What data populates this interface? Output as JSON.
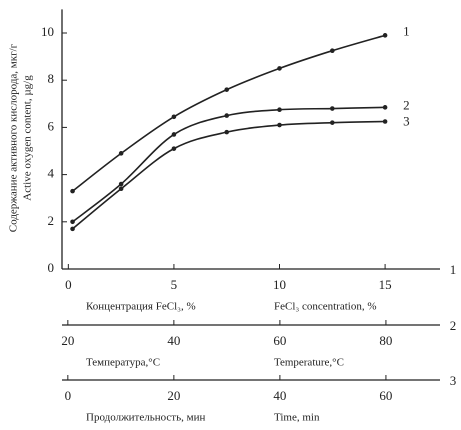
{
  "chart_data": {
    "type": "line",
    "y_labels": [
      "Содержание активного кислорода, мкг/г",
      "Active oxygen content, µg/g"
    ],
    "ylim": [
      0,
      11
    ],
    "yticks": [
      0,
      2,
      4,
      6,
      8,
      10
    ],
    "x": [
      0.2,
      2.5,
      5,
      7.5,
      10,
      12.5,
      15
    ],
    "series": [
      {
        "name": "1",
        "color": "#222222",
        "values": [
          3.3,
          4.9,
          6.45,
          7.6,
          8.5,
          9.25,
          9.9
        ]
      },
      {
        "name": "2",
        "color": "#222222",
        "values": [
          2.0,
          3.6,
          5.7,
          6.5,
          6.75,
          6.8,
          6.85
        ]
      },
      {
        "name": "3",
        "color": "#222222",
        "values": [
          1.7,
          3.4,
          5.1,
          5.8,
          6.1,
          6.2,
          6.25
        ]
      }
    ],
    "x_axes": [
      {
        "number": "1",
        "labels": [
          "Концентрация FeCl₃, %",
          "FeCl₃ concentration, %"
        ],
        "xlim": [
          -0.3,
          17.6
        ],
        "xticks": [
          0,
          5,
          10,
          15
        ]
      },
      {
        "number": "2",
        "labels": [
          "Температура,°C",
          "Temperature,°C"
        ],
        "xlim": [
          18.9,
          90.2
        ],
        "xticks": [
          20,
          40,
          60,
          80
        ]
      },
      {
        "number": "3",
        "labels": [
          "Продолжительность, мин",
          "Time, min"
        ],
        "xlim": [
          -1.1,
          70.2
        ],
        "xticks": [
          0,
          20,
          40,
          60
        ]
      }
    ]
  }
}
